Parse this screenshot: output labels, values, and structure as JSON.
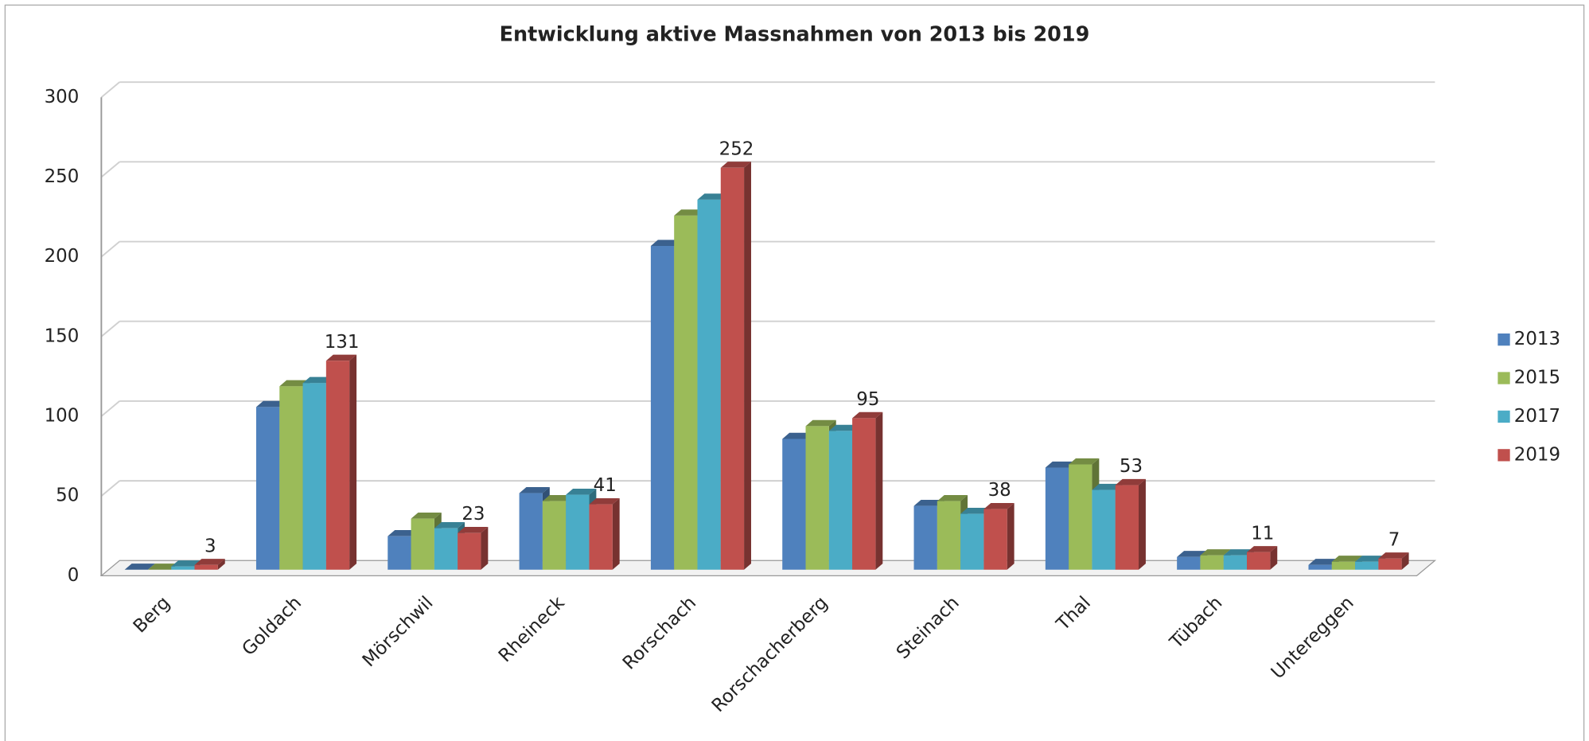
{
  "chart_data": {
    "type": "bar3d",
    "title": "Entwicklung aktive Massnahmen von 2013 bis 2019",
    "categories": [
      "Berg",
      "Goldach",
      "Mörschwil",
      "Rheineck",
      "Rorschach",
      "Rorschacherberg",
      "Steinach",
      "Thal",
      "Tübach",
      "Untereggen"
    ],
    "series": [
      {
        "name": "2013",
        "color": "#4f81bd",
        "values": [
          0,
          102,
          21,
          48,
          203,
          82,
          40,
          64,
          8,
          3
        ]
      },
      {
        "name": "2015",
        "color": "#9bbb59",
        "values": [
          0,
          115,
          32,
          43,
          222,
          90,
          43,
          66,
          9,
          5
        ]
      },
      {
        "name": "2017",
        "color": "#4bacc6",
        "values": [
          2,
          117,
          26,
          47,
          232,
          87,
          35,
          50,
          9,
          5
        ]
      },
      {
        "name": "2019",
        "color": "#c0504d",
        "values": [
          3,
          131,
          23,
          41,
          252,
          95,
          38,
          53,
          11,
          7
        ]
      }
    ],
    "ylim": [
      0,
      300
    ],
    "yticks": [
      0,
      50,
      100,
      150,
      200,
      250,
      300
    ],
    "grid": true,
    "legend": "right"
  }
}
